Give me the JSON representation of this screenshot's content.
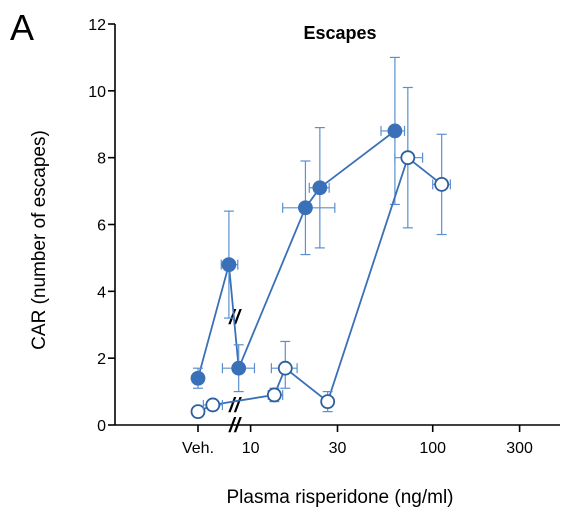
{
  "panel_label": "A",
  "chart_data": {
    "type": "scatter",
    "title": "Escapes",
    "xlabel": "Plasma risperidone (ng/ml)",
    "ylabel": "CAR (number of escapes)",
    "x_scale": "log",
    "xlim": [
      1,
      300
    ],
    "ylim": [
      0,
      12
    ],
    "xticks": [
      {
        "value": "Veh.",
        "label": "Veh."
      },
      {
        "value": 10,
        "label": "10"
      },
      {
        "value": 30,
        "label": "30"
      },
      {
        "value": 100,
        "label": "100"
      },
      {
        "value": 300,
        "label": "300"
      }
    ],
    "yticks": [
      0,
      2,
      4,
      6,
      8,
      10,
      12
    ],
    "axis_break": true,
    "grid": false,
    "series": [
      {
        "marker": "filled-circle",
        "color": "#3a70b8",
        "points": [
          {
            "x": "Veh.",
            "y": 1.4,
            "y_err": [
              1.1,
              1.7
            ],
            "x_err": null
          },
          {
            "x": 7.6,
            "y": 4.8,
            "y_err": [
              3.2,
              6.4
            ],
            "x_err": [
              6.9,
              8.5
            ]
          },
          {
            "x": 8.6,
            "y": 1.7,
            "y_err": [
              1.0,
              2.4
            ],
            "x_err": [
              7.0,
              10.5
            ]
          },
          {
            "x": 20,
            "y": 6.5,
            "y_err": [
              5.1,
              7.9
            ],
            "x_err": [
              15,
              29
            ]
          },
          {
            "x": 24,
            "y": 7.1,
            "y_err": [
              5.3,
              8.9
            ],
            "x_err": [
              21,
              27
            ]
          },
          {
            "x": 62,
            "y": 8.8,
            "y_err": [
              6.6,
              11.0
            ],
            "x_err": [
              52,
              70
            ]
          }
        ]
      },
      {
        "marker": "open-circle",
        "color": "#3a70b8",
        "points": [
          {
            "x": "Veh.",
            "y": 0.4,
            "y_err": [
              0.35,
              0.45
            ],
            "x_err": null
          },
          {
            "x": 6.2,
            "y": 0.6,
            "y_err": [
              0.45,
              0.75
            ],
            "x_err": [
              5.5,
              7.0
            ]
          },
          {
            "x": 13.5,
            "y": 0.9,
            "y_err": [
              0.7,
              1.1
            ],
            "x_err": [
              12.5,
              15
            ]
          },
          {
            "x": 15.5,
            "y": 1.7,
            "y_err": [
              1.1,
              2.5
            ],
            "x_err": [
              13,
              18
            ]
          },
          {
            "x": 26.5,
            "y": 0.7,
            "y_err": [
              0.4,
              1.0
            ],
            "x_err": [
              25,
              28
            ]
          },
          {
            "x": 73,
            "y": 8.0,
            "y_err": [
              5.9,
              10.1
            ],
            "x_err": [
              62,
              88
            ]
          },
          {
            "x": 112,
            "y": 7.2,
            "y_err": [
              5.7,
              8.7
            ],
            "x_err": [
              100,
              125
            ]
          }
        ]
      }
    ]
  }
}
